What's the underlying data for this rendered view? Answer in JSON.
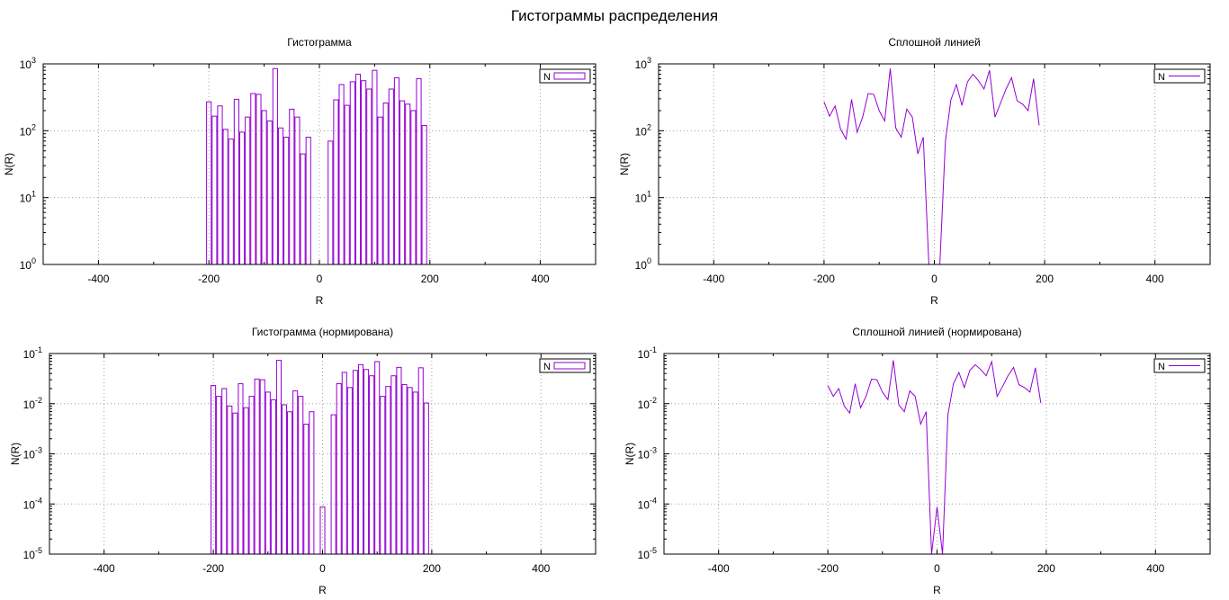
{
  "figure": {
    "title": "Гистограммы распределения"
  },
  "series_color": "#9400d3",
  "chart_data": [
    {
      "type": "bar",
      "title": "Гистограмма",
      "xlabel": "R",
      "ylabel": "N(R)",
      "xlim": [
        -500,
        500
      ],
      "ylim": [
        1,
        1000
      ],
      "yscale": "log",
      "grid": true,
      "legend": {
        "placement": "top-right",
        "entries": [
          "N"
        ]
      },
      "xticks": [
        "-400",
        "-200",
        "0",
        "200",
        "400"
      ],
      "yticks": [
        "10^0",
        "10^1",
        "10^2",
        "10^3"
      ],
      "bin_width": 10,
      "x": [
        -200,
        -190,
        -180,
        -170,
        -160,
        -150,
        -140,
        -130,
        -120,
        -110,
        -100,
        -90,
        -80,
        -70,
        -60,
        -50,
        -40,
        -30,
        -20,
        20,
        30,
        40,
        50,
        60,
        70,
        80,
        90,
        100,
        110,
        120,
        130,
        140,
        150,
        160,
        170,
        180,
        190
      ],
      "values": [
        270,
        165,
        235,
        105,
        75,
        295,
        95,
        160,
        360,
        350,
        200,
        140,
        850,
        110,
        80,
        210,
        160,
        45,
        80,
        70,
        290,
        490,
        240,
        540,
        700,
        560,
        420,
        800,
        160,
        260,
        420,
        620,
        280,
        250,
        200,
        600,
        120
      ]
    },
    {
      "type": "line",
      "title": "Сплошной линией",
      "xlabel": "R",
      "ylabel": "N(R)",
      "xlim": [
        -500,
        500
      ],
      "ylim": [
        1,
        1000
      ],
      "yscale": "log",
      "grid": true,
      "legend": {
        "placement": "top-right",
        "entries": [
          "N"
        ]
      },
      "xticks": [
        "-400",
        "-200",
        "0",
        "200",
        "400"
      ],
      "yticks": [
        "10^0",
        "10^1",
        "10^2",
        "10^3"
      ],
      "x": [
        -200,
        -190,
        -180,
        -170,
        -160,
        -150,
        -140,
        -130,
        -120,
        -110,
        -100,
        -90,
        -80,
        -70,
        -60,
        -50,
        -40,
        -30,
        -20,
        -10,
        0,
        10,
        20,
        30,
        40,
        50,
        60,
        70,
        80,
        90,
        100,
        110,
        120,
        130,
        140,
        150,
        160,
        170,
        180,
        190
      ],
      "values": [
        270,
        165,
        235,
        105,
        75,
        295,
        95,
        160,
        360,
        350,
        200,
        140,
        850,
        110,
        80,
        210,
        160,
        45,
        80,
        0,
        0,
        0,
        70,
        290,
        490,
        240,
        540,
        700,
        560,
        420,
        800,
        160,
        260,
        420,
        620,
        280,
        250,
        200,
        600,
        120
      ]
    },
    {
      "type": "bar",
      "title": "Гистограмма (нормирована)",
      "xlabel": "R",
      "ylabel": "N(R)",
      "xlim": [
        -500,
        500
      ],
      "ylim": [
        1e-05,
        0.1
      ],
      "yscale": "log",
      "grid": true,
      "legend": {
        "placement": "top-right",
        "entries": [
          "N"
        ]
      },
      "xticks": [
        "-400",
        "-200",
        "0",
        "200",
        "400"
      ],
      "yticks": [
        "10^-5",
        "10^-4",
        "10^-3",
        "10^-2",
        "10^-1"
      ],
      "bin_width": 10,
      "x": [
        -200,
        -190,
        -180,
        -170,
        -160,
        -150,
        -140,
        -130,
        -120,
        -110,
        -100,
        -90,
        -80,
        -70,
        -60,
        -50,
        -40,
        -30,
        -20,
        0,
        20,
        30,
        40,
        50,
        60,
        70,
        80,
        90,
        100,
        110,
        120,
        130,
        140,
        150,
        160,
        170,
        180,
        190
      ],
      "values": [
        0.023,
        0.014,
        0.02,
        0.009,
        0.0065,
        0.025,
        0.0083,
        0.014,
        0.031,
        0.03,
        0.017,
        0.012,
        0.073,
        0.0095,
        0.0069,
        0.018,
        0.014,
        0.0039,
        0.0069,
        8.7e-05,
        0.006,
        0.025,
        0.042,
        0.021,
        0.046,
        0.06,
        0.048,
        0.036,
        0.069,
        0.014,
        0.022,
        0.036,
        0.053,
        0.024,
        0.021,
        0.017,
        0.052,
        0.0103
      ]
    },
    {
      "type": "line",
      "title": "Сплошной линией (нормирована)",
      "xlabel": "R",
      "ylabel": "N(R)",
      "xlim": [
        -500,
        500
      ],
      "ylim": [
        1e-05,
        0.1
      ],
      "yscale": "log",
      "grid": true,
      "legend": {
        "placement": "top-right",
        "entries": [
          "N"
        ]
      },
      "xticks": [
        "-400",
        "-200",
        "0",
        "200",
        "400"
      ],
      "yticks": [
        "10^-5",
        "10^-4",
        "10^-3",
        "10^-2",
        "10^-1"
      ],
      "x": [
        -200,
        -190,
        -180,
        -170,
        -160,
        -150,
        -140,
        -130,
        -120,
        -110,
        -100,
        -90,
        -80,
        -70,
        -60,
        -50,
        -40,
        -30,
        -20,
        -10,
        0,
        10,
        20,
        30,
        40,
        50,
        60,
        70,
        80,
        90,
        100,
        110,
        120,
        130,
        140,
        150,
        160,
        170,
        180,
        190
      ],
      "values": [
        0.023,
        0.014,
        0.02,
        0.009,
        0.0065,
        0.025,
        0.0083,
        0.014,
        0.031,
        0.03,
        0.017,
        0.012,
        0.073,
        0.0095,
        0.0069,
        0.018,
        0.014,
        0.0039,
        0.0069,
        0,
        8.7e-05,
        0,
        0.006,
        0.025,
        0.042,
        0.021,
        0.046,
        0.06,
        0.048,
        0.036,
        0.069,
        0.014,
        0.022,
        0.036,
        0.053,
        0.024,
        0.021,
        0.017,
        0.052,
        0.0103
      ]
    }
  ]
}
